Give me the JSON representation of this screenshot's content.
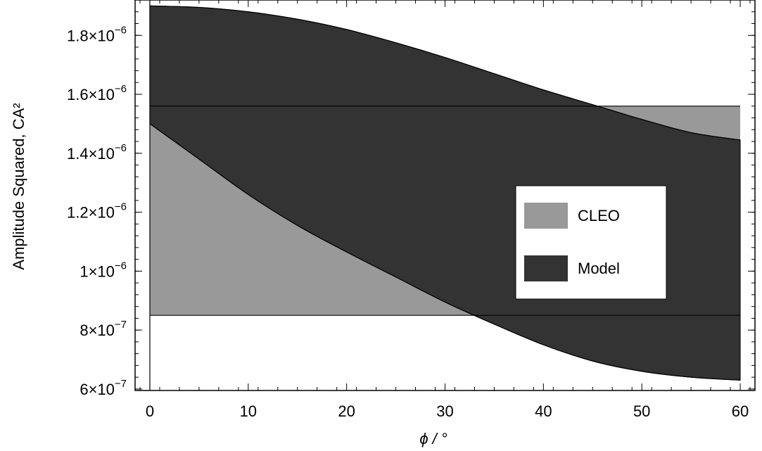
{
  "chart_data": {
    "type": "area",
    "title": "",
    "xlabel": "ϕ / °",
    "ylabel": "Amplitude Squared,  CA²",
    "xlim": [
      -1.5,
      61.5
    ],
    "ylim": [
      5.95e-07,
      1.92e-06
    ],
    "x_ticks": [
      0,
      10,
      20,
      30,
      40,
      50,
      60
    ],
    "x_tick_labels": [
      "0",
      "10",
      "20",
      "30",
      "40",
      "50",
      "60"
    ],
    "y_ticks": [
      {
        "value": 6e-07,
        "mantissa": "6",
        "exponent": "−7"
      },
      {
        "value": 8e-07,
        "mantissa": "8",
        "exponent": "−7"
      },
      {
        "value": 1e-06,
        "mantissa": "1",
        "exponent": "−6"
      },
      {
        "value": 1.2e-06,
        "mantissa": "1.2",
        "exponent": "−6"
      },
      {
        "value": 1.4e-06,
        "mantissa": "1.4",
        "exponent": "−6"
      },
      {
        "value": 1.6e-06,
        "mantissa": "1.6",
        "exponent": "−6"
      },
      {
        "value": 1.8e-06,
        "mantissa": "1.8",
        "exponent": "−6"
      }
    ],
    "times_sign": "×",
    "base": "10",
    "grid": false,
    "legend_position": "center-right",
    "series": [
      {
        "name": "CLEO",
        "kind": "band",
        "color": "#999999",
        "x": [
          0,
          60
        ],
        "lower": [
          8.5e-07,
          8.5e-07
        ],
        "upper": [
          1.56e-06,
          1.56e-06
        ],
        "boundary_from": 0,
        "boundary_upper_at_start": 1.5e-06
      },
      {
        "name": "Model",
        "kind": "band",
        "color": "#333333",
        "x": [
          0,
          5,
          10,
          15,
          20,
          25,
          30,
          35,
          40,
          45,
          50,
          55,
          60
        ],
        "lower": [
          1.5e-06,
          1.38e-06,
          1.26e-06,
          1.155e-06,
          1.065e-06,
          9.8e-07,
          8.95e-07,
          8.2e-07,
          7.5e-07,
          6.95e-07,
          6.6e-07,
          6.4e-07,
          6.3e-07
        ],
        "upper": [
          1.9e-06,
          1.895e-06,
          1.88e-06,
          1.855e-06,
          1.82e-06,
          1.775e-06,
          1.725e-06,
          1.67e-06,
          1.615e-06,
          1.565e-06,
          1.515e-06,
          1.47e-06,
          1.445e-06
        ]
      }
    ]
  }
}
